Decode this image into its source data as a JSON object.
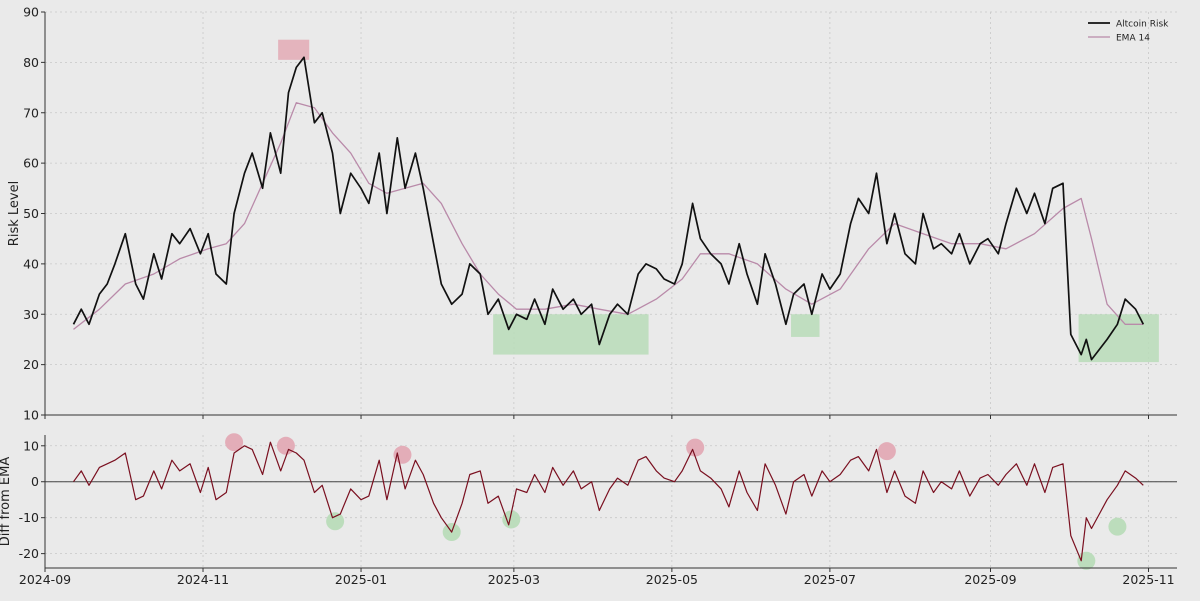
{
  "chart_data": [
    {
      "type": "line",
      "ylabel": "Risk Level",
      "ylim": [
        10,
        90
      ],
      "yticks": [
        10,
        20,
        30,
        40,
        50,
        60,
        70,
        80,
        90
      ],
      "xlim": [
        "2024-09-01",
        "2025-11-12"
      ],
      "xticks": [
        "2024-09",
        "2024-11",
        "2025-01",
        "2025-03",
        "2025-05",
        "2025-07",
        "2025-09",
        "2025-11"
      ],
      "grid": true,
      "legend": "top-right",
      "colors": {
        "risk": "#111111",
        "ema": "#b98aa9",
        "red_zone": "#e3aab5",
        "green_zone": "#b9dcb9"
      },
      "series": [
        {
          "name": "Altcoin Risk",
          "x": [
            "2024-09-12",
            "2024-09-15",
            "2024-09-18",
            "2024-09-22",
            "2024-09-25",
            "2024-09-28",
            "2024-10-02",
            "2024-10-06",
            "2024-10-09",
            "2024-10-13",
            "2024-10-16",
            "2024-10-20",
            "2024-10-23",
            "2024-10-27",
            "2024-10-31",
            "2024-11-03",
            "2024-11-06",
            "2024-11-10",
            "2024-11-13",
            "2024-11-17",
            "2024-11-20",
            "2024-11-24",
            "2024-11-27",
            "2024-12-01",
            "2024-12-04",
            "2024-12-07",
            "2024-12-10",
            "2024-12-14",
            "2024-12-17",
            "2024-12-21",
            "2024-12-24",
            "2024-12-28",
            "2025-01-01",
            "2025-01-04",
            "2025-01-08",
            "2025-01-11",
            "2025-01-15",
            "2025-01-18",
            "2025-01-22",
            "2025-01-25",
            "2025-01-29",
            "2025-02-01",
            "2025-02-05",
            "2025-02-09",
            "2025-02-12",
            "2025-02-16",
            "2025-02-19",
            "2025-02-23",
            "2025-02-27",
            "2025-03-02",
            "2025-03-06",
            "2025-03-09",
            "2025-03-13",
            "2025-03-16",
            "2025-03-20",
            "2025-03-24",
            "2025-03-27",
            "2025-03-31",
            "2025-04-03",
            "2025-04-07",
            "2025-04-10",
            "2025-04-14",
            "2025-04-18",
            "2025-04-21",
            "2025-04-25",
            "2025-04-28",
            "2025-05-02",
            "2025-05-05",
            "2025-05-09",
            "2025-05-12",
            "2025-05-16",
            "2025-05-20",
            "2025-05-23",
            "2025-05-27",
            "2025-05-30",
            "2025-06-03",
            "2025-06-06",
            "2025-06-10",
            "2025-06-14",
            "2025-06-17",
            "2025-06-21",
            "2025-06-24",
            "2025-06-28",
            "2025-07-01",
            "2025-07-05",
            "2025-07-09",
            "2025-07-12",
            "2025-07-16",
            "2025-07-19",
            "2025-07-23",
            "2025-07-26",
            "2025-07-30",
            "2025-08-03",
            "2025-08-06",
            "2025-08-10",
            "2025-08-13",
            "2025-08-17",
            "2025-08-20",
            "2025-08-24",
            "2025-08-28",
            "2025-08-31",
            "2025-09-04",
            "2025-09-07",
            "2025-09-11",
            "2025-09-15",
            "2025-09-18",
            "2025-09-22",
            "2025-09-25",
            "2025-09-29",
            "2025-10-02",
            "2025-10-06",
            "2025-10-08",
            "2025-10-10",
            "2025-10-13",
            "2025-10-16",
            "2025-10-20",
            "2025-10-23",
            "2025-10-27",
            "2025-10-30"
          ],
          "values": [
            28,
            31,
            28,
            34,
            36,
            40,
            46,
            36,
            33,
            42,
            37,
            46,
            44,
            47,
            42,
            46,
            38,
            36,
            50,
            58,
            62,
            55,
            66,
            58,
            74,
            79,
            81,
            68,
            70,
            62,
            50,
            58,
            55,
            52,
            62,
            50,
            65,
            55,
            62,
            55,
            44,
            36,
            32,
            34,
            40,
            38,
            30,
            33,
            27,
            30,
            29,
            33,
            28,
            35,
            31,
            33,
            30,
            32,
            24,
            30,
            32,
            30,
            38,
            40,
            39,
            37,
            36,
            40,
            52,
            45,
            42,
            40,
            36,
            44,
            38,
            32,
            42,
            36,
            28,
            34,
            36,
            30,
            38,
            35,
            38,
            48,
            53,
            50,
            58,
            44,
            50,
            42,
            40,
            50,
            43,
            44,
            42,
            46,
            40,
            44,
            45,
            42,
            48,
            55,
            50,
            54,
            48,
            55,
            56,
            26,
            22,
            25,
            21,
            23,
            25,
            28,
            33,
            31,
            28
          ]
        },
        {
          "name": "EMA 14",
          "x": [
            "2024-09-12",
            "2024-09-22",
            "2024-10-02",
            "2024-10-13",
            "2024-10-23",
            "2024-11-03",
            "2024-11-10",
            "2024-11-17",
            "2024-11-24",
            "2024-12-01",
            "2024-12-07",
            "2024-12-14",
            "2024-12-21",
            "2024-12-28",
            "2025-01-04",
            "2025-01-11",
            "2025-01-18",
            "2025-01-25",
            "2025-02-01",
            "2025-02-09",
            "2025-02-16",
            "2025-02-23",
            "2025-03-02",
            "2025-03-13",
            "2025-03-24",
            "2025-04-03",
            "2025-04-14",
            "2025-04-25",
            "2025-05-05",
            "2025-05-12",
            "2025-05-23",
            "2025-06-03",
            "2025-06-14",
            "2025-06-24",
            "2025-07-05",
            "2025-07-16",
            "2025-07-26",
            "2025-08-06",
            "2025-08-17",
            "2025-08-28",
            "2025-09-07",
            "2025-09-18",
            "2025-09-29",
            "2025-10-06",
            "2025-10-10",
            "2025-10-16",
            "2025-10-23",
            "2025-10-30"
          ],
          "values": [
            27,
            31,
            36,
            38,
            41,
            43,
            44,
            48,
            56,
            64,
            72,
            71,
            66,
            62,
            56,
            54,
            55,
            56,
            52,
            44,
            38,
            34,
            31,
            31,
            32,
            31,
            30,
            33,
            37,
            42,
            42,
            40,
            35,
            32,
            35,
            43,
            48,
            46,
            44,
            44,
            43,
            46,
            51,
            53,
            45,
            32,
            28,
            28
          ]
        }
      ],
      "zones": [
        {
          "kind": "red",
          "x0": "2024-11-30",
          "x1": "2024-12-12",
          "y0": 80.5,
          "y1": 84.5
        },
        {
          "kind": "green",
          "x0": "2025-02-21",
          "x1": "2025-04-22",
          "y0": 22,
          "y1": 30
        },
        {
          "kind": "green",
          "x0": "2025-06-16",
          "x1": "2025-06-27",
          "y0": 25.5,
          "y1": 30
        },
        {
          "kind": "green",
          "x0": "2025-10-05",
          "x1": "2025-11-05",
          "y0": 20.5,
          "y1": 30
        }
      ]
    },
    {
      "type": "line",
      "ylabel": "Diff from EMA",
      "ylim": [
        -24,
        13
      ],
      "yticks": [
        -20,
        -10,
        0,
        10
      ],
      "grid": true,
      "series": [
        {
          "x": [
            "2024-09-12",
            "2024-09-15",
            "2024-09-18",
            "2024-09-22",
            "2024-09-25",
            "2024-09-28",
            "2024-10-02",
            "2024-10-06",
            "2024-10-09",
            "2024-10-13",
            "2024-10-16",
            "2024-10-20",
            "2024-10-23",
            "2024-10-27",
            "2024-10-31",
            "2024-11-03",
            "2024-11-06",
            "2024-11-10",
            "2024-11-13",
            "2024-11-17",
            "2024-11-20",
            "2024-11-24",
            "2024-11-27",
            "2024-12-01",
            "2024-12-04",
            "2024-12-07",
            "2024-12-10",
            "2024-12-14",
            "2024-12-17",
            "2024-12-21",
            "2024-12-24",
            "2024-12-28",
            "2025-01-01",
            "2025-01-04",
            "2025-01-08",
            "2025-01-11",
            "2025-01-15",
            "2025-01-18",
            "2025-01-22",
            "2025-01-25",
            "2025-01-29",
            "2025-02-01",
            "2025-02-05",
            "2025-02-09",
            "2025-02-12",
            "2025-02-16",
            "2025-02-19",
            "2025-02-23",
            "2025-02-27",
            "2025-03-02",
            "2025-03-06",
            "2025-03-09",
            "2025-03-13",
            "2025-03-16",
            "2025-03-20",
            "2025-03-24",
            "2025-03-27",
            "2025-03-31",
            "2025-04-03",
            "2025-04-07",
            "2025-04-10",
            "2025-04-14",
            "2025-04-18",
            "2025-04-21",
            "2025-04-25",
            "2025-04-28",
            "2025-05-02",
            "2025-05-05",
            "2025-05-09",
            "2025-05-12",
            "2025-05-16",
            "2025-05-20",
            "2025-05-23",
            "2025-05-27",
            "2025-05-30",
            "2025-06-03",
            "2025-06-06",
            "2025-06-10",
            "2025-06-14",
            "2025-06-17",
            "2025-06-21",
            "2025-06-24",
            "2025-06-28",
            "2025-07-01",
            "2025-07-05",
            "2025-07-09",
            "2025-07-12",
            "2025-07-16",
            "2025-07-19",
            "2025-07-23",
            "2025-07-26",
            "2025-07-30",
            "2025-08-03",
            "2025-08-06",
            "2025-08-10",
            "2025-08-13",
            "2025-08-17",
            "2025-08-20",
            "2025-08-24",
            "2025-08-28",
            "2025-08-31",
            "2025-09-04",
            "2025-09-07",
            "2025-09-11",
            "2025-09-15",
            "2025-09-18",
            "2025-09-22",
            "2025-09-25",
            "2025-09-29",
            "2025-10-02",
            "2025-10-06",
            "2025-10-08",
            "2025-10-10",
            "2025-10-13",
            "2025-10-16",
            "2025-10-20",
            "2025-10-23",
            "2025-10-27",
            "2025-10-30"
          ],
          "values": [
            0,
            3,
            -1,
            4,
            5,
            6,
            8,
            -5,
            -4,
            3,
            -2,
            6,
            3,
            5,
            -3,
            4,
            -5,
            -3,
            8,
            10,
            9,
            2,
            11,
            3,
            9,
            8,
            6,
            -3,
            -1,
            -10,
            -9,
            -2,
            -5,
            -4,
            6,
            -5,
            8,
            -2,
            6,
            2,
            -6,
            -10,
            -14,
            -6,
            2,
            3,
            -6,
            -4,
            -12,
            -2,
            -3,
            2,
            -3,
            4,
            -1,
            3,
            -2,
            0,
            -8,
            -2,
            1,
            -1,
            6,
            7,
            3,
            1,
            0,
            3,
            9,
            3,
            1,
            -2,
            -7,
            3,
            -3,
            -8,
            5,
            -1,
            -9,
            0,
            2,
            -4,
            3,
            0,
            2,
            6,
            7,
            3,
            9,
            -3,
            3,
            -4,
            -6,
            3,
            -3,
            0,
            -2,
            3,
            -4,
            1,
            2,
            -1,
            2,
            5,
            -1,
            5,
            -3,
            4,
            5,
            -15,
            -22,
            -10,
            -13,
            -9,
            -5,
            -1,
            3,
            1,
            -1
          ]
        }
      ],
      "colors": {
        "diff": "#7a1020",
        "red_marker": "#e3aab5",
        "green_marker": "#b9dcb9"
      },
      "markers": [
        {
          "kind": "red",
          "x": "2024-11-13",
          "y": 11
        },
        {
          "kind": "red",
          "x": "2024-12-03",
          "y": 10
        },
        {
          "kind": "green",
          "x": "2024-12-22",
          "y": -11
        },
        {
          "kind": "red",
          "x": "2025-01-17",
          "y": 7.5
        },
        {
          "kind": "green",
          "x": "2025-02-05",
          "y": -14
        },
        {
          "kind": "green",
          "x": "2025-02-28",
          "y": -10.5
        },
        {
          "kind": "red",
          "x": "2025-05-10",
          "y": 9.5
        },
        {
          "kind": "red",
          "x": "2025-07-23",
          "y": 8.5
        },
        {
          "kind": "green",
          "x": "2025-10-08",
          "y": -22
        },
        {
          "kind": "green",
          "x": "2025-10-20",
          "y": -12.5
        }
      ]
    }
  ]
}
